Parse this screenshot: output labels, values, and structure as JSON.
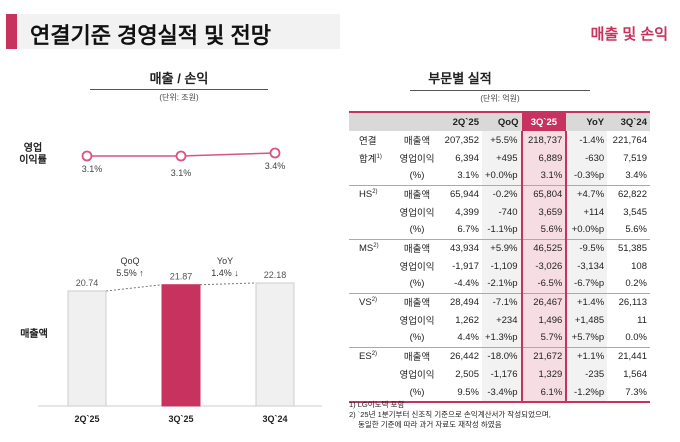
{
  "header": {
    "title": "연결기준 경영실적 및 전망",
    "tag": "매출 및 손익"
  },
  "left": {
    "title": "매출 / 손익",
    "unit": "(단위: 조원)",
    "margin_label_1": "영업",
    "margin_label_2": "이익률",
    "sales_label": "매출액",
    "qoq_label": "QoQ",
    "qoq_value": "5.5% ↑",
    "yoy_label": "YoY",
    "yoy_value": "1.4% ↓"
  },
  "chart_data": [
    {
      "type": "line",
      "categories": [
        "2Q`25",
        "3Q`25",
        "3Q`24"
      ],
      "values": [
        3.1,
        3.1,
        3.4
      ],
      "labels": [
        "3.1%",
        "3.1%",
        "3.4%"
      ],
      "color": "#d9557e"
    },
    {
      "type": "bar",
      "categories": [
        "2Q`25",
        "3Q`25",
        "3Q`24"
      ],
      "values": [
        20.74,
        21.87,
        22.18
      ],
      "labels": [
        "20.74",
        "21.87",
        "22.18"
      ],
      "colors": [
        "#f0f0f0",
        "#c8325f",
        "#f0f0f0"
      ]
    }
  ],
  "right": {
    "title": "부문별 실적",
    "unit": "(단위: 억원)",
    "columns": [
      "2Q`25",
      "QoQ",
      "3Q`25",
      "YoY",
      "3Q`24"
    ],
    "groups": [
      {
        "name": "연결",
        "name2": "합계",
        "sup": "1)",
        "rows": [
          [
            "매출액",
            "207,352",
            "+5.5%",
            "218,737",
            "-1.4%",
            "221,764"
          ],
          [
            "영업이익",
            "6,394",
            "+495",
            "6,889",
            "-630",
            "7,519"
          ],
          [
            "(%)",
            "3.1%",
            "+0.0%p",
            "3.1%",
            "-0.3%p",
            "3.4%"
          ]
        ]
      },
      {
        "name": "HS",
        "sup": "2)",
        "rows": [
          [
            "매출액",
            "65,944",
            "-0.2%",
            "65,804",
            "+4.7%",
            "62,822"
          ],
          [
            "영업이익",
            "4,399",
            "-740",
            "3,659",
            "+114",
            "3,545"
          ],
          [
            "(%)",
            "6.7%",
            "-1.1%p",
            "5.6%",
            "+0.0%p",
            "5.6%"
          ]
        ]
      },
      {
        "name": "MS",
        "sup": "2)",
        "rows": [
          [
            "매출액",
            "43,934",
            "+5.9%",
            "46,525",
            "-9.5%",
            "51,385"
          ],
          [
            "영업이익",
            "-1,917",
            "-1,109",
            "-3,026",
            "-3,134",
            "108"
          ],
          [
            "(%)",
            "-4.4%",
            "-2.1%p",
            "-6.5%",
            "-6.7%p",
            "0.2%"
          ]
        ]
      },
      {
        "name": "VS",
        "sup": "2)",
        "rows": [
          [
            "매출액",
            "28,494",
            "-7.1%",
            "26,467",
            "+1.4%",
            "26,113"
          ],
          [
            "영업이익",
            "1,262",
            "+234",
            "1,496",
            "+1,485",
            "11"
          ],
          [
            "(%)",
            "4.4%",
            "+1.3%p",
            "5.7%",
            "+5.7%p",
            "0.0%"
          ]
        ]
      },
      {
        "name": "ES",
        "sup": "2)",
        "rows": [
          [
            "매출액",
            "26,442",
            "-18.0%",
            "21,672",
            "+1.1%",
            "21,441"
          ],
          [
            "영업이익",
            "2,505",
            "-1,176",
            "1,329",
            "-235",
            "1,564"
          ],
          [
            "(%)",
            "9.5%",
            "-3.4%p",
            "6.1%",
            "-1.2%p",
            "7.3%"
          ]
        ]
      }
    ],
    "footnotes": [
      "1) LG이노텍 포함",
      "2) `25년 1분기부터 신조직 기준으로 손익계산서가 작성되었으며,",
      "동일한 기준에 따라 과거 자료도 재작성 하였음"
    ]
  }
}
